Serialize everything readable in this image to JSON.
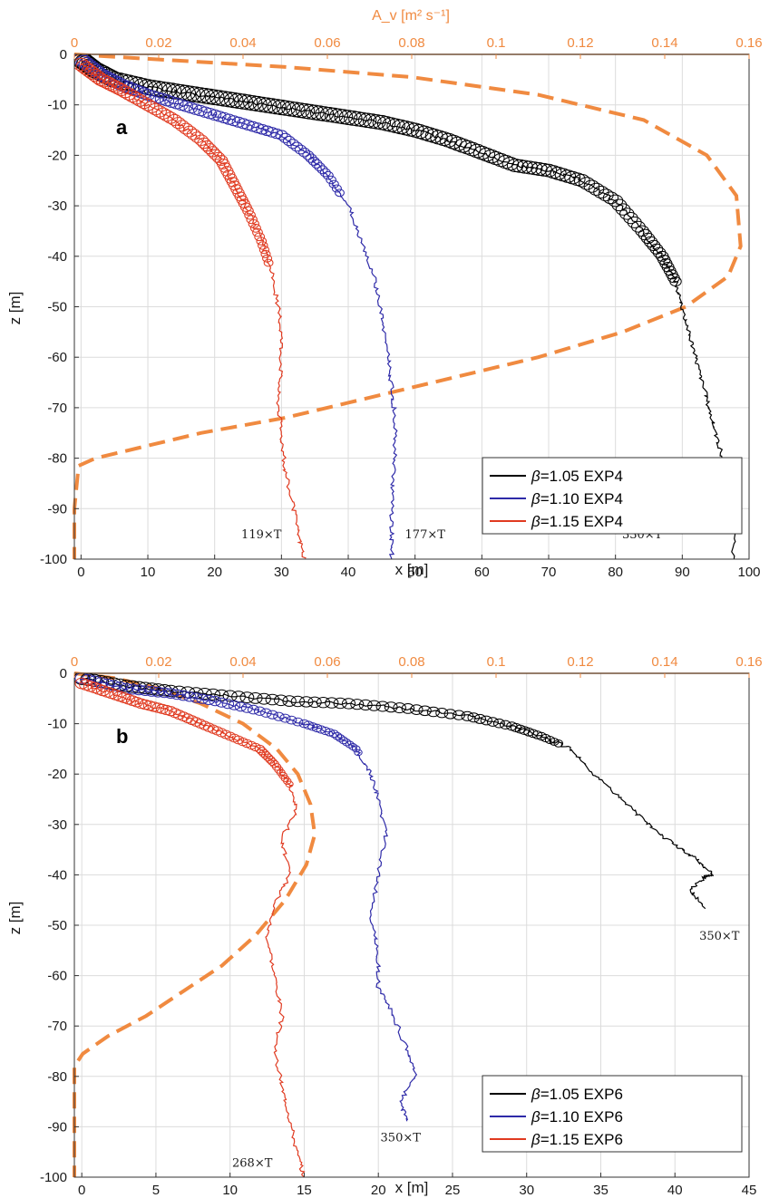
{
  "chart_data": [
    {
      "type": "line",
      "panel_label": "a",
      "xlabel": "x [m]",
      "ylabel": "z [m]",
      "top_xlabel": "A_v [m² s⁻¹]",
      "xlim": [
        -1,
        100
      ],
      "ylim": [
        -100,
        0
      ],
      "top_xlim": [
        0,
        0.16
      ],
      "x_ticks": [
        0,
        10,
        20,
        30,
        40,
        50,
        60,
        70,
        80,
        90,
        100
      ],
      "y_ticks": [
        0,
        -10,
        -20,
        -30,
        -40,
        -50,
        -60,
        -70,
        -80,
        -90,
        -100
      ],
      "top_ticks": [
        "0",
        "0.02",
        "0.04",
        "0.06",
        "0.08",
        "0.1",
        "0.12",
        "0.14",
        "0.16"
      ],
      "grid": true,
      "legend_position": "bottom-right",
      "legend_beta_symbol": "β",
      "series": [
        {
          "name": "=1.05 EXP4",
          "color": "#000000",
          "x": [
            0,
            2,
            5,
            10,
            15,
            20,
            25,
            30,
            35,
            40,
            45,
            50,
            55,
            60,
            65,
            70,
            75,
            80,
            84,
            87,
            89,
            90,
            91,
            92,
            93,
            94,
            95,
            96,
            97,
            98,
            97.5
          ],
          "z": [
            -1,
            -3,
            -5,
            -6.5,
            -7.5,
            -8.5,
            -9.5,
            -10.5,
            -11.5,
            -12.5,
            -13.5,
            -15,
            -17,
            -19.5,
            -22,
            -23,
            -25,
            -29,
            -35,
            -40,
            -45,
            -50,
            -55,
            -60,
            -65,
            -70,
            -75,
            -80,
            -85,
            -90,
            -100
          ]
        },
        {
          "name": "=1.10 EXP4",
          "color": "#2e2aa8",
          "x": [
            0,
            3,
            6,
            10,
            15,
            20,
            25,
            30,
            34,
            37,
            40,
            42,
            44,
            45,
            46,
            46.5,
            47,
            47,
            46.5,
            46.5,
            46.5
          ],
          "z": [
            -1,
            -4,
            -6,
            -8,
            -10,
            -12,
            -14,
            -16,
            -20,
            -24,
            -30,
            -37,
            -45,
            -52,
            -60,
            -66,
            -72,
            -80,
            -87,
            -95,
            -100
          ]
        },
        {
          "name": "=1.15 EXP4",
          "color": "#e03a20",
          "x": [
            0,
            3,
            6,
            10,
            14,
            18,
            21,
            23,
            25,
            27,
            28.5,
            29.5,
            30,
            30,
            29.5,
            30,
            30.5,
            31.5,
            32.5,
            33.5
          ],
          "z": [
            -2,
            -5,
            -7,
            -10,
            -13,
            -17,
            -21,
            -26,
            -31,
            -37,
            -43,
            -50,
            -55,
            -62,
            -68,
            -75,
            -82,
            -88,
            -95,
            -100
          ]
        }
      ],
      "dashed_profile": {
        "name": "A_v",
        "color": "#f08a40",
        "av": [
          0,
          0.02,
          0.05,
          0.08,
          0.11,
          0.135,
          0.15,
          0.157,
          0.158,
          0.155,
          0.145,
          0.13,
          0.11,
          0.09,
          0.07,
          0.05,
          0.03,
          0.015,
          0.005,
          0.001,
          0.0,
          0.0
        ],
        "z": [
          0,
          -1,
          -2.5,
          -4.5,
          -8,
          -13,
          -20,
          -28,
          -38,
          -44,
          -50,
          -55,
          -60,
          -64,
          -68,
          -72,
          -75,
          -78,
          -80,
          -81.5,
          -90,
          -100
        ]
      },
      "annotations": [
        {
          "text": "119×T",
          "x": 27,
          "z": -95
        },
        {
          "text": "177×T",
          "x": 51.5,
          "z": -95
        },
        {
          "text": "330×T",
          "x": 84,
          "z": -95
        }
      ]
    },
    {
      "type": "line",
      "panel_label": "b",
      "xlabel": "x [m]",
      "ylabel": "z [m]",
      "top_xlabel": "",
      "xlim": [
        -0.5,
        45
      ],
      "ylim": [
        -100,
        0
      ],
      "top_xlim": [
        0,
        0.16
      ],
      "x_ticks": [
        0,
        5,
        10,
        15,
        20,
        25,
        30,
        35,
        40,
        45
      ],
      "y_ticks": [
        0,
        -10,
        -20,
        -30,
        -40,
        -50,
        -60,
        -70,
        -80,
        -90,
        -100
      ],
      "top_ticks": [
        "0",
        "0.02",
        "0.04",
        "0.06",
        "0.08",
        "0.1",
        "0.12",
        "0.14",
        "0.16"
      ],
      "grid": true,
      "legend_position": "bottom-right",
      "legend_beta_symbol": "β",
      "series": [
        {
          "name": "=1.05 EXP6",
          "color": "#000000",
          "x": [
            0,
            3,
            6,
            10,
            14,
            18,
            22,
            26,
            29,
            31,
            33,
            34.5,
            36,
            37.5,
            39,
            40.5,
            41.5,
            42.5,
            42,
            41,
            42
          ],
          "z": [
            -1,
            -2.5,
            -3.5,
            -4.5,
            -5.5,
            -6,
            -7,
            -8.5,
            -10.5,
            -12.5,
            -15,
            -20,
            -24,
            -28,
            -32,
            -35,
            -37,
            -40,
            -40.5,
            -43,
            -46.5
          ]
        },
        {
          "name": "=1.10 EXP6",
          "color": "#2e2aa8",
          "x": [
            0,
            3,
            6,
            9,
            12,
            15,
            17,
            18.5,
            19.5,
            20,
            20.5,
            20,
            19.5,
            20,
            20,
            21,
            22,
            22.5,
            21.5,
            22
          ],
          "z": [
            -1,
            -3,
            -4,
            -5.5,
            -7.5,
            -10,
            -12,
            -15,
            -20,
            -25,
            -32,
            -40,
            -48,
            -55,
            -62,
            -68,
            -75,
            -80,
            -85,
            -89
          ]
        },
        {
          "name": "=1.15 EXP6",
          "color": "#e03a20",
          "x": [
            0,
            2,
            4,
            6,
            8,
            10,
            12,
            13,
            14,
            14.5,
            13.5,
            14,
            13,
            12.5,
            13,
            13.5,
            13,
            13.5,
            14,
            14.5,
            15
          ],
          "z": [
            -2,
            -4,
            -6,
            -7.5,
            -10,
            -12.5,
            -15,
            -18,
            -22,
            -27,
            -33,
            -40,
            -46,
            -52,
            -60,
            -68,
            -75,
            -82,
            -88,
            -95,
            -100
          ]
        }
      ],
      "dashed_profile": {
        "name": "A_v",
        "color": "#f08a40",
        "av": [
          0,
          0.01,
          0.02,
          0.03,
          0.04,
          0.048,
          0.053,
          0.056,
          0.057,
          0.055,
          0.05,
          0.043,
          0.035,
          0.026,
          0.017,
          0.008,
          0.002,
          0.0,
          0.0,
          0.0
        ],
        "z": [
          0,
          -1,
          -3,
          -6,
          -10,
          -15,
          -20,
          -26,
          -32,
          -38,
          -45,
          -52,
          -58,
          -63,
          -68,
          -72,
          -75.5,
          -78,
          -90,
          -100
        ]
      },
      "annotations": [
        {
          "text": "350×T",
          "x": 43,
          "z": -52
        },
        {
          "text": "268×T",
          "x": 11.5,
          "z": -97
        },
        {
          "text": "350×T",
          "x": 21.5,
          "z": -92
        }
      ]
    }
  ]
}
